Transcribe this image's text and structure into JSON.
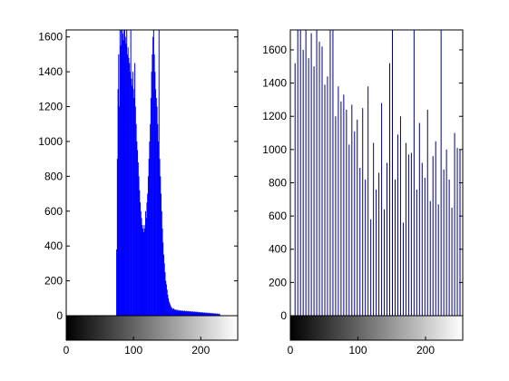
{
  "chart_data": [
    {
      "type": "stem",
      "color": "#0000ff",
      "xlim": [
        0,
        255
      ],
      "ylim": [
        0,
        1640
      ],
      "xticks": [
        0,
        100,
        200
      ],
      "yticks": [
        0,
        200,
        400,
        600,
        800,
        1000,
        1200,
        1400,
        1600
      ],
      "x": [
        75,
        76,
        77,
        78,
        79,
        80,
        81,
        82,
        83,
        84,
        85,
        86,
        87,
        88,
        89,
        90,
        91,
        92,
        93,
        94,
        95,
        96,
        97,
        98,
        99,
        100,
        101,
        102,
        103,
        104,
        105,
        106,
        107,
        108,
        109,
        110,
        111,
        112,
        113,
        114,
        115,
        116,
        117,
        118,
        119,
        120,
        121,
        122,
        123,
        124,
        125,
        126,
        127,
        128,
        129,
        130,
        131,
        132,
        133,
        134,
        135,
        136,
        137,
        138,
        139,
        140,
        141,
        142,
        143,
        144,
        145,
        146,
        147,
        148,
        149,
        150,
        151,
        152,
        153,
        154,
        155,
        156,
        157,
        158,
        159,
        160,
        161,
        162,
        163,
        164,
        165,
        166,
        167,
        168,
        169,
        170,
        171,
        172,
        173,
        174,
        175,
        176,
        177,
        178,
        179,
        180,
        181,
        182,
        183,
        184,
        185,
        186,
        187,
        188,
        189,
        190,
        191,
        192,
        193,
        194,
        195,
        196,
        197,
        198,
        199,
        200,
        201,
        202,
        203,
        204,
        205,
        206,
        207,
        208,
        209,
        210,
        211,
        212,
        213,
        214,
        215,
        216,
        217,
        218,
        219,
        220,
        221,
        222,
        223,
        224,
        225,
        226,
        227,
        228
      ],
      "values": [
        380,
        900,
        1300,
        1500,
        1200,
        1650,
        1550,
        2100,
        1640,
        1620,
        1580,
        2000,
        1640,
        1600,
        1560,
        2200,
        1500,
        1540,
        1480,
        1450,
        1400,
        1900,
        1360,
        1320,
        1400,
        1300,
        1250,
        1450,
        1200,
        1100,
        1000,
        950,
        880,
        800,
        720,
        650,
        600,
        560,
        520,
        500,
        480,
        520,
        500,
        600,
        560,
        650,
        700,
        800,
        900,
        1000,
        1100,
        1250,
        1400,
        1500,
        1600,
        2200,
        1500,
        1400,
        1300,
        1250,
        1200,
        1100,
        1000,
        2000,
        900,
        800,
        700,
        600,
        500,
        420,
        350,
        300,
        250,
        200,
        180,
        150,
        120,
        100,
        80,
        70,
        60,
        50,
        45,
        40,
        38,
        42,
        35,
        33,
        36,
        30,
        34,
        28,
        32,
        30,
        27,
        31,
        29,
        26,
        30,
        28,
        25,
        29,
        27,
        24,
        28,
        26,
        23,
        27,
        25,
        22,
        26,
        24,
        21,
        25,
        23,
        20,
        24,
        22,
        19,
        23,
        21,
        18,
        22,
        20,
        17,
        21,
        19,
        16,
        20,
        18,
        15,
        19,
        17,
        14,
        18,
        16,
        13,
        17,
        15,
        12,
        16,
        14,
        11,
        15,
        13,
        10,
        14,
        12,
        9,
        13,
        11,
        8,
        12,
        10
      ]
    },
    {
      "type": "stem",
      "color": "#000080",
      "xlim": [
        0,
        255
      ],
      "ylim": [
        0,
        1720
      ],
      "xticks": [
        0,
        100,
        200
      ],
      "yticks": [
        0,
        200,
        400,
        600,
        800,
        1000,
        1200,
        1400,
        1600
      ],
      "x": [
        7,
        11,
        15,
        19,
        23,
        27,
        31,
        35,
        39,
        43,
        47,
        51,
        55,
        59,
        63,
        67,
        71,
        75,
        79,
        83,
        87,
        91,
        95,
        99,
        103,
        107,
        111,
        115,
        119,
        123,
        127,
        131,
        135,
        139,
        143,
        147,
        151,
        155,
        159,
        163,
        167,
        171,
        175,
        179,
        183,
        187,
        191,
        195,
        199,
        203,
        207,
        211,
        215,
        219,
        223,
        227,
        231,
        235,
        239,
        243,
        247,
        251,
        255
      ],
      "values": [
        1520,
        2600,
        3000,
        1600,
        2200,
        1550,
        1700,
        1500,
        2800,
        1650,
        1620,
        1390,
        1440,
        2500,
        1720,
        1200,
        1380,
        1290,
        1330,
        1240,
        1030,
        1270,
        1110,
        1180,
        890,
        1250,
        820,
        1380,
        580,
        1040,
        760,
        860,
        1280,
        640,
        920,
        1520,
        3000,
        820,
        1090,
        1200,
        560,
        1040,
        970,
        980,
        2600,
        760,
        1160,
        920,
        830,
        1240,
        690,
        960,
        1050,
        670,
        2400,
        880,
        1000,
        820,
        650,
        1100,
        1010,
        1000,
        800
      ]
    }
  ]
}
